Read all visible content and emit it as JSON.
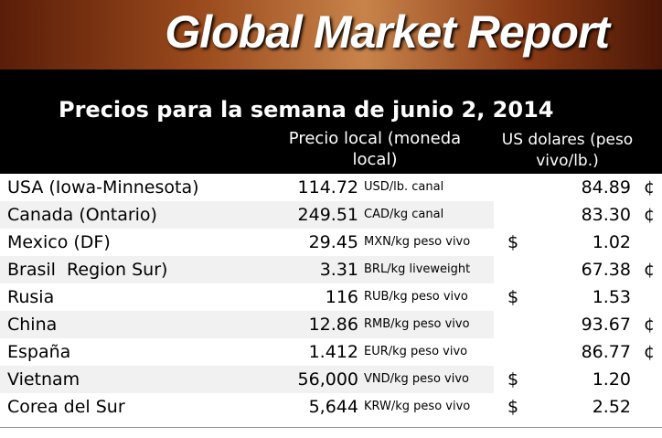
{
  "header": {
    "title": "Global Market Report",
    "subtitle": "Precios para la semana de junio 2, 2014",
    "columns": [
      "Precio local (moneda local)",
      "US dolares (peso vivo/lb.)"
    ]
  },
  "table": {
    "rows": [
      {
        "country": "USA (Iowa-Minnesota)",
        "price": "114.72",
        "unit": "USD/lb. canal",
        "usd": "84.89",
        "suffix": "¢"
      },
      {
        "country": "Canada (Ontario)",
        "price": "249.51",
        "unit": "CAD/kg canal",
        "usd": "83.30",
        "suffix": "¢"
      },
      {
        "country": "Mexico (DF)",
        "price": "29.45",
        "unit": "MXN/kg peso vivo",
        "prefix": "$",
        "usd": "1.02"
      },
      {
        "country": "Brasil  Region Sur)",
        "price": "3.31",
        "unit": "BRL/kg liveweight",
        "usd": "67.38",
        "suffix": "¢"
      },
      {
        "country": "Rusia",
        "price": "116",
        "unit": "RUB/kg peso vivo",
        "prefix": "$",
        "usd": "1.53"
      },
      {
        "country": "China",
        "price": "12.86",
        "unit": "RMB/kg peso vivo",
        "usd": "93.67",
        "suffix": "¢"
      },
      {
        "country": "España",
        "price": "1.412",
        "unit": "EUR/kg peso vivo",
        "usd": "86.77",
        "suffix": "¢"
      },
      {
        "country": "Vietnam",
        "price": "56,000",
        "unit": "VND/kg peso vivo",
        "prefix": "$",
        "usd": "1.20"
      },
      {
        "country": "Corea del Sur",
        "price": "5,644",
        "unit": "KRW/kg peso vivo",
        "prefix": "$",
        "usd": "2.52"
      }
    ]
  }
}
